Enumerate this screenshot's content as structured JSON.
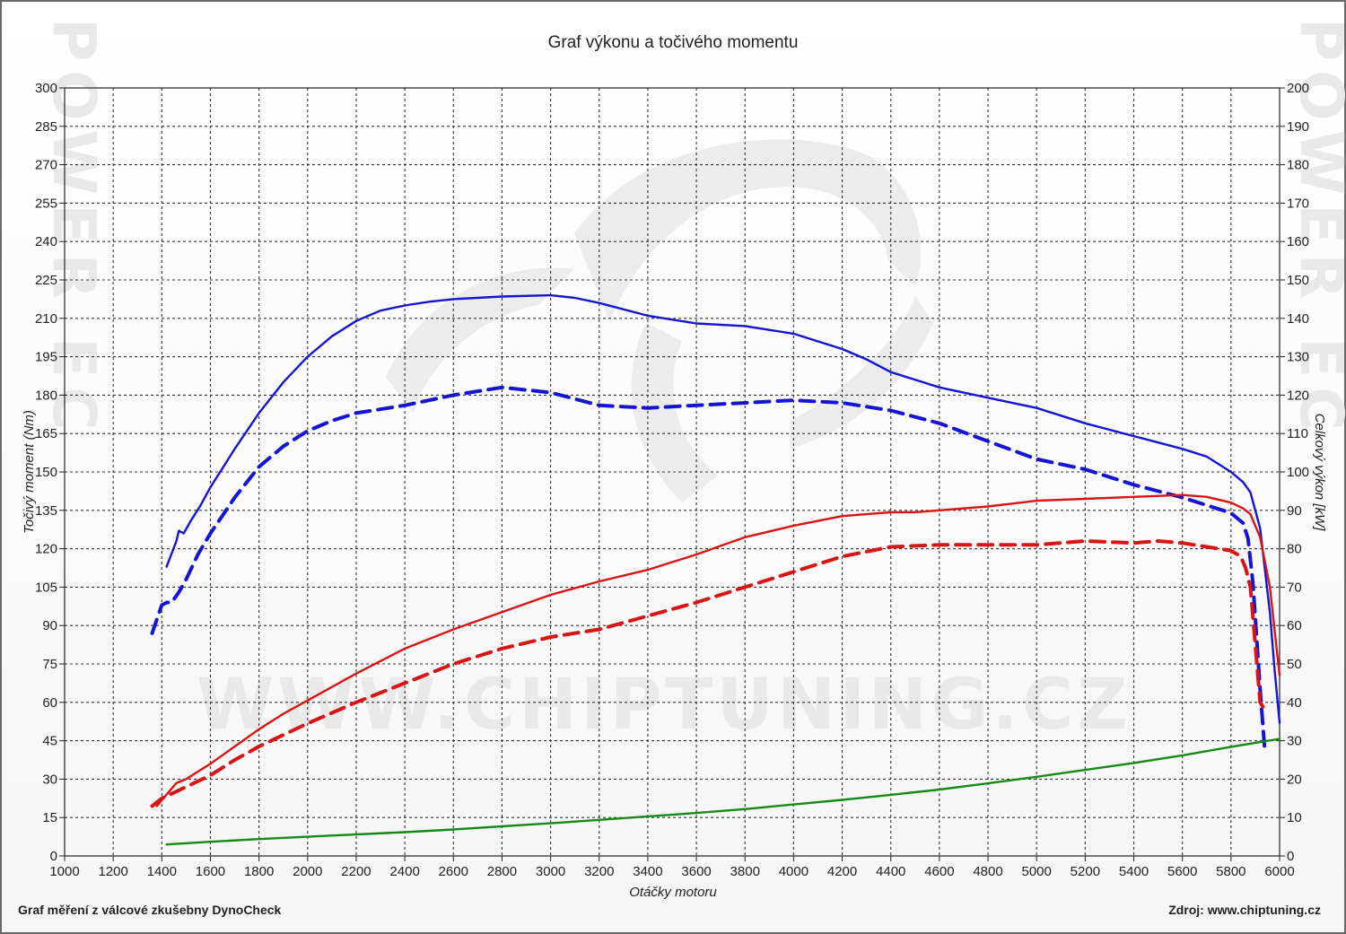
{
  "chart_data": {
    "type": "line",
    "title": "Graf výkonu a točivého momentu",
    "xlabel": "Otáčky motoru",
    "ylabel_left": "Točivý moment (Nm)",
    "ylabel_right": "Celkový výkon [kW]",
    "xlim": [
      1000,
      6000
    ],
    "ylim_left": [
      0,
      300
    ],
    "ylim_right": [
      0,
      200
    ],
    "x_ticks": [
      1000,
      1200,
      1400,
      1600,
      1800,
      2000,
      2200,
      2400,
      2600,
      2800,
      3000,
      3200,
      3400,
      3600,
      3800,
      4000,
      4200,
      4400,
      4600,
      4800,
      5000,
      5200,
      5400,
      5600,
      5800,
      6000
    ],
    "y_left_ticks": [
      0,
      15,
      30,
      45,
      60,
      75,
      90,
      105,
      120,
      135,
      150,
      165,
      180,
      195,
      210,
      225,
      240,
      255,
      270,
      285,
      300
    ],
    "y_right_ticks": [
      0,
      10,
      20,
      30,
      40,
      50,
      60,
      70,
      80,
      90,
      100,
      110,
      120,
      130,
      140,
      150,
      160,
      170,
      180,
      190,
      200
    ],
    "grid": true,
    "series": [
      {
        "color": "#1414d2",
        "dash": false,
        "axis": "left",
        "x": [
          1420,
          1460,
          1470,
          1490,
          1520,
          1560,
          1600,
          1700,
          1800,
          1900,
          2000,
          2100,
          2200,
          2300,
          2400,
          2500,
          2600,
          2800,
          3000,
          3100,
          3200,
          3400,
          3600,
          3800,
          4000,
          4200,
          4300,
          4400,
          4600,
          4800,
          5000,
          5200,
          5400,
          5600,
          5700,
          5800,
          5850,
          5880,
          5920,
          5960,
          5980,
          6000
        ],
        "y": [
          113,
          123,
          127,
          126,
          131,
          137,
          144,
          159,
          173,
          185,
          195,
          203,
          209,
          213,
          215,
          216.5,
          217.5,
          218.5,
          219,
          218,
          216,
          211,
          208,
          207,
          204,
          198,
          194,
          189,
          183,
          179,
          175,
          169,
          164,
          159,
          156,
          150,
          146,
          142,
          128,
          95,
          72,
          52
        ]
      },
      {
        "color": "#1414d2",
        "dash": true,
        "axis": "left",
        "x": [
          1360,
          1400,
          1420,
          1440,
          1470,
          1500,
          1550,
          1600,
          1700,
          1800,
          1900,
          2000,
          2100,
          2200,
          2400,
          2600,
          2800,
          3000,
          3200,
          3400,
          3600,
          3800,
          4000,
          4200,
          4400,
          4600,
          4800,
          5000,
          5200,
          5400,
          5600,
          5800,
          5850,
          5870,
          5890,
          5920,
          5940
        ],
        "y": [
          87,
          98,
          99,
          99,
          103,
          108,
          118,
          126,
          140,
          152,
          160,
          166,
          170,
          173,
          176,
          180,
          183,
          181,
          176,
          175,
          176,
          177,
          178,
          177,
          174,
          169,
          162,
          155,
          151,
          145,
          140,
          134,
          130,
          124,
          107,
          65,
          40
        ]
      },
      {
        "color": "#d81414",
        "dash": false,
        "axis": "right",
        "x": [
          1380,
          1420,
          1460,
          1500,
          1550,
          1600,
          1700,
          1800,
          1900,
          2000,
          2200,
          2400,
          2600,
          2800,
          3000,
          3200,
          3400,
          3600,
          3800,
          4000,
          4200,
          4400,
          4500,
          4600,
          4800,
          5000,
          5200,
          5400,
          5600,
          5700,
          5800,
          5850,
          5880,
          5920,
          5960,
          6000
        ],
        "y": [
          13,
          16,
          19,
          20,
          22,
          24,
          28.5,
          33,
          37,
          40.5,
          47.5,
          54,
          59,
          63.5,
          68,
          71.5,
          74.5,
          78.5,
          83,
          86,
          88.5,
          89.5,
          89.5,
          90,
          91,
          92.5,
          93,
          93.5,
          94,
          93.5,
          92,
          90.5,
          89,
          83,
          70,
          47
        ]
      },
      {
        "color": "#d81414",
        "dash": true,
        "axis": "right",
        "x": [
          1360,
          1400,
          1450,
          1500,
          1600,
          1700,
          1800,
          1900,
          2000,
          2200,
          2400,
          2600,
          2800,
          3000,
          3200,
          3400,
          3600,
          3800,
          4000,
          4200,
          4400,
          4600,
          4800,
          5000,
          5200,
          5400,
          5500,
          5600,
          5700,
          5800,
          5840,
          5860,
          5880,
          5900,
          5920,
          5940
        ],
        "y": [
          13,
          15,
          16.5,
          18,
          21,
          25,
          28.5,
          31.5,
          34.5,
          40,
          45,
          50,
          54,
          57,
          59,
          62.5,
          66,
          70,
          74,
          78,
          80.5,
          81,
          81,
          81,
          82,
          81.5,
          82,
          81.5,
          80.5,
          79.5,
          78,
          75,
          70,
          55,
          40,
          38
        ]
      },
      {
        "color": "#168a16",
        "dash": false,
        "axis": "right",
        "x": [
          1420,
          1600,
          1800,
          2000,
          2200,
          2400,
          2600,
          2800,
          3000,
          3200,
          3400,
          3600,
          3800,
          4000,
          4200,
          4400,
          4600,
          4800,
          5000,
          5200,
          5400,
          5600,
          5800,
          6000
        ],
        "y": [
          3,
          3.7,
          4.4,
          5,
          5.6,
          6.2,
          6.9,
          7.7,
          8.5,
          9.4,
          10.3,
          11.2,
          12.2,
          13.4,
          14.6,
          15.9,
          17.3,
          18.9,
          20.6,
          22.4,
          24.2,
          26.2,
          28.4,
          30.5
        ]
      }
    ]
  },
  "footer": {
    "left": "Graf měření z válcové zkušebny DynoCheck",
    "right": "Zdroj: www.chiptuning.cz"
  },
  "watermark": {
    "center": "WWW.CHIPTUNING.CZ",
    "side": "POWER EC"
  }
}
